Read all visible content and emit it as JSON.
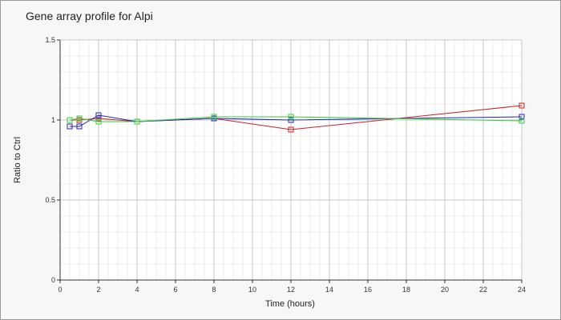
{
  "chart_data": {
    "type": "line",
    "title": "Gene array profile for Alpi",
    "xlabel": "Time (hours)",
    "ylabel": "Ratio to Ctrl",
    "xlim": [
      0,
      24
    ],
    "ylim": [
      0,
      1.5
    ],
    "x_ticks": [
      0,
      2,
      4,
      6,
      8,
      10,
      12,
      14,
      16,
      18,
      20,
      22,
      24
    ],
    "y_ticks": [
      0,
      0.5,
      1,
      1.5
    ],
    "x_tick_labels": [
      "0",
      "2",
      "4",
      "6",
      "8",
      "10",
      "12",
      "14",
      "16",
      "18",
      "20",
      "22",
      "24"
    ],
    "y_tick_labels": [
      "0",
      "0.5",
      "1",
      "1.5"
    ],
    "grid": true,
    "legend": "none",
    "series": [
      {
        "color": "#cc2222",
        "points": [
          [
            0.5,
            1.0
          ],
          [
            1,
            1.0
          ],
          [
            2,
            1.01
          ],
          [
            4,
            0.99
          ],
          [
            8,
            1.01
          ],
          [
            12,
            0.94
          ],
          [
            24,
            1.09
          ]
        ]
      },
      {
        "color": "#2222bb",
        "points": [
          [
            0.5,
            0.96
          ],
          [
            1,
            0.96
          ],
          [
            2,
            1.03
          ],
          [
            4,
            0.99
          ],
          [
            8,
            1.01
          ],
          [
            12,
            1.0
          ],
          [
            24,
            1.02
          ]
        ]
      },
      {
        "color": "#33cc33",
        "points": [
          [
            0.5,
            1.0
          ],
          [
            1,
            1.01
          ],
          [
            2,
            0.99
          ],
          [
            4,
            0.99
          ],
          [
            8,
            1.02
          ],
          [
            12,
            1.02
          ],
          [
            24,
            0.995
          ]
        ]
      }
    ]
  }
}
